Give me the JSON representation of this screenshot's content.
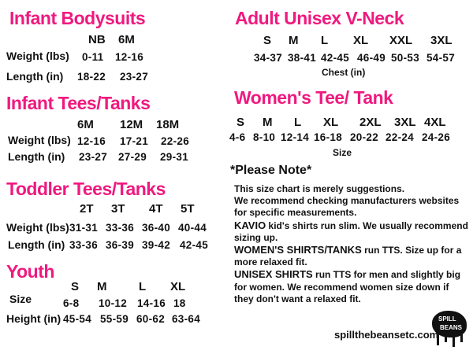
{
  "infant_bodysuits": {
    "title": "Infant Bodysuits",
    "sizes": [
      "NB",
      "6M"
    ],
    "rows": [
      {
        "label": "Weight (lbs)",
        "values": [
          "0-11",
          "12-16"
        ]
      },
      {
        "label": "Length (in)",
        "values": [
          "18-22",
          "23-27"
        ]
      }
    ]
  },
  "infant_tees": {
    "title": "Infant Tees/Tanks",
    "sizes": [
      "6M",
      "12M",
      "18M"
    ],
    "rows": [
      {
        "label": "Weight (lbs)",
        "values": [
          "12-16",
          "17-21",
          "22-26"
        ]
      },
      {
        "label": "Length (in)",
        "values": [
          "23-27",
          "27-29",
          "29-31"
        ]
      }
    ]
  },
  "toddler_tees": {
    "title": "Toddler  Tees/Tanks",
    "sizes": [
      "2T",
      "3T",
      "4T",
      "5T"
    ],
    "rows": [
      {
        "label": "Weight (lbs)",
        "values": [
          "31-31",
          "33-36",
          "36-40",
          "40-44"
        ]
      },
      {
        "label": "Length (in)",
        "values": [
          "33-36",
          "36-39",
          "39-42",
          "42-45"
        ]
      }
    ]
  },
  "youth": {
    "title": "Youth",
    "sizes": [
      "S",
      "M",
      "L",
      "XL"
    ],
    "rows": [
      {
        "label": "Size",
        "values": [
          "6-8",
          "10-12",
          "14-16",
          "18"
        ]
      },
      {
        "label": "Height (in)",
        "values": [
          "45-54",
          "55-59",
          "60-62",
          "63-64"
        ]
      }
    ]
  },
  "adult_unisex": {
    "title": "Adult Unisex V-Neck",
    "sizes": [
      "S",
      "M",
      "L",
      "XL",
      "XXL",
      "3XL"
    ],
    "values": [
      "34-37",
      "38-41",
      "42-45",
      "46-49",
      "50-53",
      "54-57"
    ],
    "caption": "Chest (in)"
  },
  "womens": {
    "title": "Women's Tee/ Tank",
    "sizes": [
      "S",
      "M",
      "L",
      "XL",
      "2XL",
      "3XL",
      "4XL"
    ],
    "values": [
      "4-6",
      "8-10",
      "12-14",
      "16-18",
      "20-22",
      "22-24",
      "24-26"
    ],
    "caption": "Size"
  },
  "note": {
    "title": "*Please Note*",
    "line1": "This size chart is merely suggestions.",
    "line2": "We recommend checking manufacturers websites for specific measurements.",
    "kavio_bold": "KAVIO",
    "kavio_text": " kid's shirts run slim. We usually recommend sizing up.",
    "women_bold": "WOMEN'S SHIRTS/TANKS",
    "women_text": " run TTS. Size up for a more relaxed fit.",
    "unisex_bold": "UNISEX SHIRTS",
    "unisex_text": " run TTS for men and slightly big for women. We recommend women size down if they don't want a relaxed fit."
  },
  "footer": {
    "website": "spillthebeansetc.com",
    "logo_text": "Spill the Beans"
  },
  "colors": {
    "heading": "#f0197f",
    "text": "#111111"
  }
}
